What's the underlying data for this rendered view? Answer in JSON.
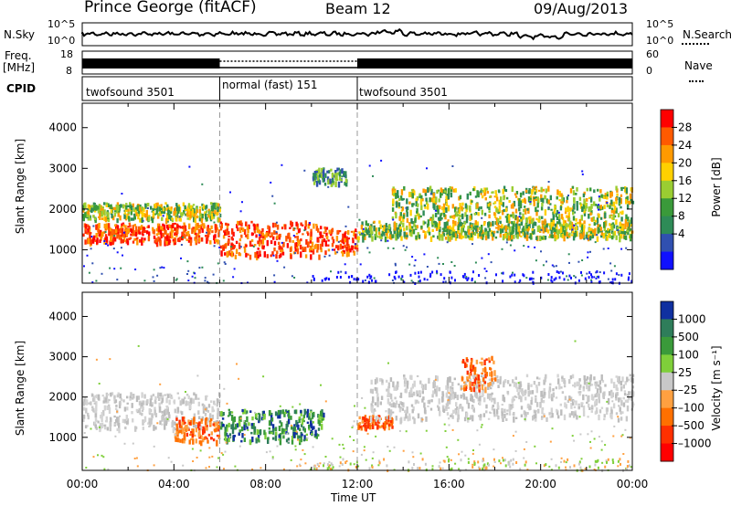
{
  "header": {
    "station": "Prince George (fitACF)",
    "beam": "Beam 12",
    "date": "09/Aug/2013"
  },
  "noise_panel": {
    "left_label": "N.Sky",
    "left_ticks": [
      "10^5",
      "10^0"
    ],
    "right_label": "N.Search",
    "right_ticks": [
      "10^5",
      "10^0"
    ]
  },
  "freq_panel": {
    "left_label_line1": "Freq.",
    "left_label_line2": "[MHz]",
    "left_ticks": [
      "18",
      "8"
    ],
    "right_label": "Nave",
    "right_ticks": [
      "60",
      "0"
    ]
  },
  "cpid_panel": {
    "label": "CPID",
    "segments": [
      {
        "name": "twofsound 3501",
        "start": 0,
        "end": 6
      },
      {
        "name": "normal (fast) 151",
        "start": 6,
        "end": 12
      },
      {
        "name": "twofsound 3501",
        "start": 12,
        "end": 24
      }
    ]
  },
  "chart_data": [
    {
      "type": "heatmap",
      "panel": "power",
      "ylabel": "Slant Range [km]",
      "ylim": [
        180,
        4600
      ],
      "yticks": [
        1000,
        2000,
        3000,
        4000
      ],
      "xlim": [
        0,
        24
      ],
      "colorbar": {
        "label": "Power [dB]",
        "ticks": [
          "28",
          "24",
          "20",
          "16",
          "12",
          "8",
          "4"
        ],
        "colors": [
          "#ff0000",
          "#ff5a00",
          "#ff9a00",
          "#ffd000",
          "#9acd32",
          "#3a9a3a",
          "#2e8b57",
          "#3050b0",
          "#1010ff"
        ]
      },
      "bands": [
        {
          "t0": 0.0,
          "t1": 6.0,
          "r0": 1200,
          "r1": 1650,
          "level": "high"
        },
        {
          "t0": 0.0,
          "t1": 6.0,
          "r0": 1750,
          "r1": 2150,
          "level": "medium"
        },
        {
          "t0": 6.0,
          "t1": 10.5,
          "r0": 850,
          "r1": 1700,
          "level": "high"
        },
        {
          "t0": 10.5,
          "t1": 12.0,
          "r0": 900,
          "r1": 1550,
          "level": "high"
        },
        {
          "t0": 12.0,
          "t1": 24.0,
          "r0": 1300,
          "r1": 1700,
          "level": "medium"
        },
        {
          "t0": 13.5,
          "t1": 24.0,
          "r0": 1700,
          "r1": 2550,
          "level": "medium"
        },
        {
          "t0": 10.0,
          "t1": 11.5,
          "r0": 2600,
          "r1": 3000,
          "level": "low"
        }
      ]
    },
    {
      "type": "heatmap",
      "panel": "velocity",
      "ylabel": "Slant Range [km]",
      "ylim": [
        180,
        4600
      ],
      "yticks": [
        1000,
        2000,
        3000,
        4000
      ],
      "xlim": [
        0,
        24
      ],
      "xticks": [
        "00:00",
        "04:00",
        "08:00",
        "12:00",
        "16:00",
        "20:00",
        "00:00"
      ],
      "xlabel": "Time UT",
      "colorbar": {
        "label": "Velocity [m s⁻¹]",
        "ticks": [
          "1000",
          "500",
          "100",
          "25",
          "–25",
          "–100",
          "–500",
          "–1000"
        ],
        "colors": [
          "#1030a0",
          "#2e7d5a",
          "#3a9a3a",
          "#7fcf3a",
          "#c8c8c8",
          "#ffa040",
          "#ff7000",
          "#ff3000",
          "#ff0000"
        ]
      },
      "bands": [
        {
          "t0": 0.0,
          "t1": 6.0,
          "r0": 1200,
          "r1": 2100,
          "level": "ground"
        },
        {
          "t0": 4.0,
          "t1": 6.0,
          "r0": 900,
          "r1": 1500,
          "level": "toward"
        },
        {
          "t0": 6.0,
          "t1": 10.5,
          "r0": 900,
          "r1": 1700,
          "level": "away"
        },
        {
          "t0": 12.0,
          "t1": 13.5,
          "r0": 1250,
          "r1": 1550,
          "level": "toward"
        },
        {
          "t0": 12.5,
          "t1": 24.0,
          "r0": 1450,
          "r1": 2550,
          "level": "ground"
        },
        {
          "t0": 16.5,
          "t1": 18.0,
          "r0": 2200,
          "r1": 3000,
          "level": "toward"
        }
      ]
    }
  ]
}
